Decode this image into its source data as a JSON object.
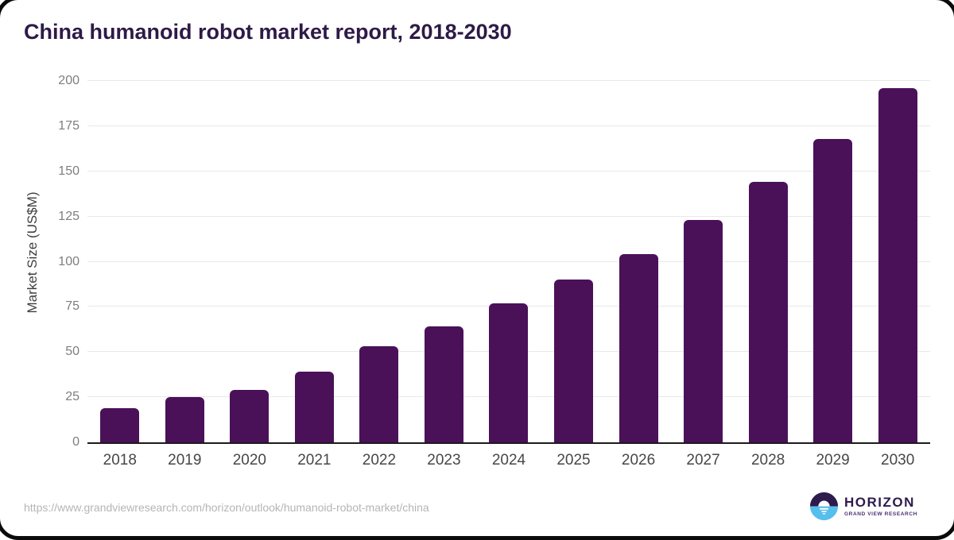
{
  "title": "China humanoid robot market report, 2018-2030",
  "source_url": "https://www.grandviewresearch.com/horizon/outlook/humanoid-robot-market/china",
  "logo": {
    "name": "HORIZON",
    "subtitle": "GRAND VIEW RESEARCH",
    "icon": "horizon-sun-icon"
  },
  "colors": {
    "bar": "#4a1159",
    "title": "#2e1a47",
    "grid": "#e8e8e8",
    "axis": "#1b1b1b",
    "ytick": "#7e7e7e",
    "xtick": "#474747",
    "ylab": "#3e3e3e",
    "url": "#b5b5b5",
    "logo_purple": "#2d1b4e",
    "logo_blue": "#57bfee",
    "logo_sub": "#4b2d73"
  },
  "chart_data": {
    "type": "bar",
    "title": "China humanoid robot market report, 2018-2030",
    "categories": [
      "2018",
      "2019",
      "2020",
      "2021",
      "2022",
      "2023",
      "2024",
      "2025",
      "2026",
      "2027",
      "2028",
      "2029",
      "2030"
    ],
    "values": [
      19,
      25,
      29,
      39,
      53,
      64,
      77,
      90,
      104,
      123,
      144,
      168,
      196
    ],
    "xlabel": "",
    "ylabel": "Market Size (US$M)",
    "ylim": [
      0,
      200
    ],
    "yticks": [
      0,
      25,
      50,
      75,
      100,
      125,
      150,
      175,
      200
    ],
    "grid": "horizontal-only",
    "legend": false,
    "bar_color": "#4a1159"
  }
}
